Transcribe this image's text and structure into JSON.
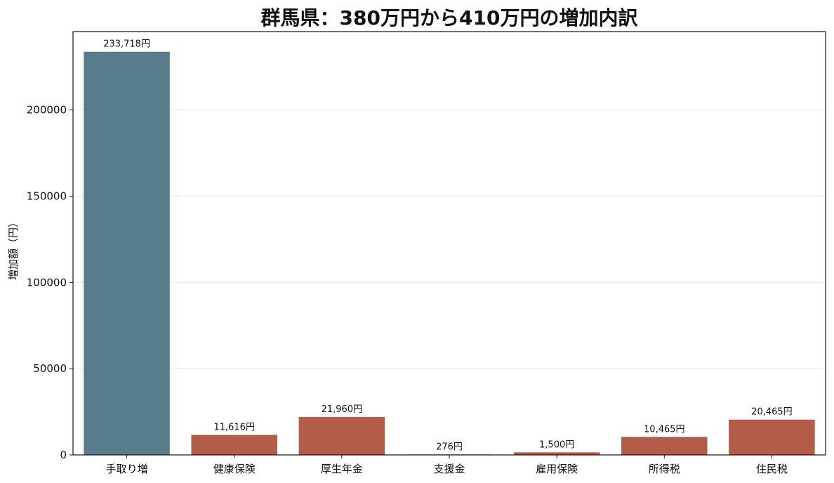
{
  "chart_data": {
    "type": "bar",
    "title": "群馬県：380万円から410万円の増加内訳",
    "xlabel": "",
    "ylabel": "増加額（円）",
    "categories": [
      "手取り増",
      "健康保険",
      "厚生年金",
      "支援金",
      "雇用保険",
      "所得税",
      "住民税"
    ],
    "values": [
      233718,
      11616,
      21960,
      276,
      1500,
      10465,
      20465
    ],
    "data_labels": [
      "233,718円",
      "11,616円",
      "21,960円",
      "276円",
      "1,500円",
      "10,465円",
      "20,465円"
    ],
    "yticks": [
      0,
      50000,
      100000,
      150000,
      200000
    ],
    "ytick_labels": [
      "0",
      "50000",
      "100000",
      "150000",
      "200000"
    ],
    "ylim": [
      0,
      245400
    ],
    "grid": true,
    "colors": {
      "highlight": "#587c8c",
      "default": "#b35c4a"
    },
    "highlight_index": 0
  }
}
